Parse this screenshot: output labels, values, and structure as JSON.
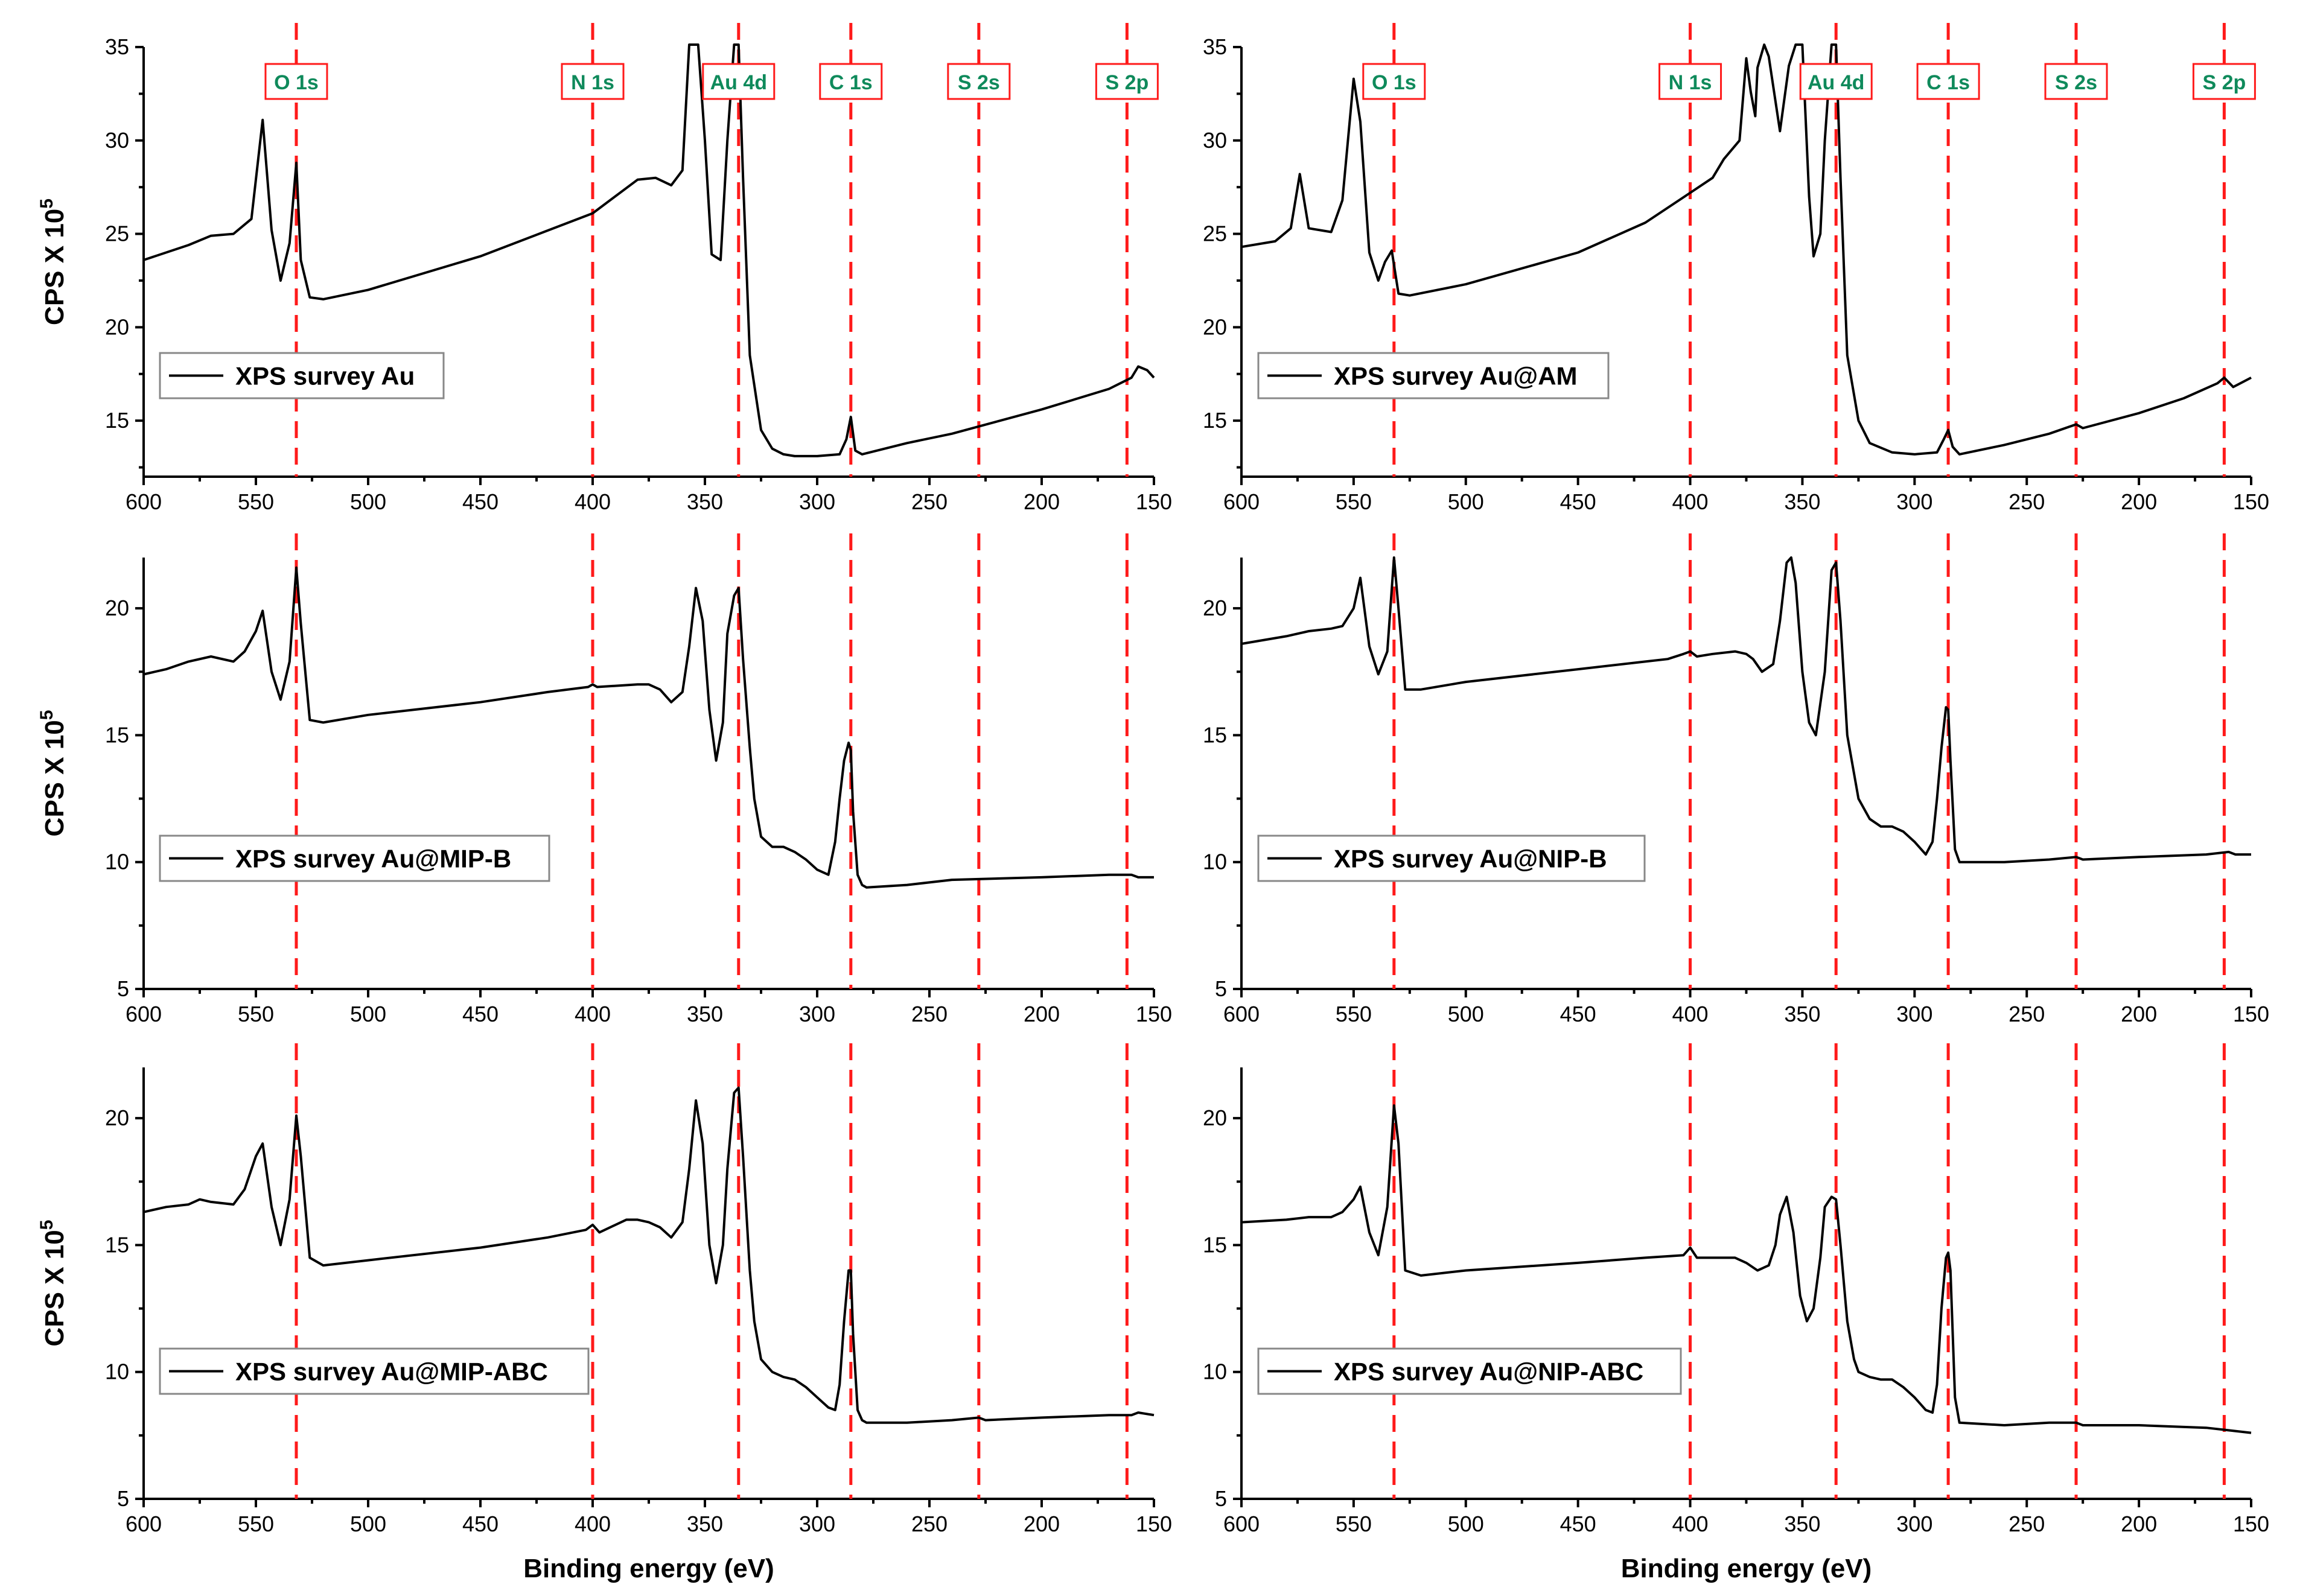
{
  "figure": {
    "x_title": "Binding energy (eV)",
    "y_title_base": "CPS X 10",
    "y_title_exp": "5"
  },
  "peak_refs": [
    {
      "label": "O 1s",
      "energy": 532
    },
    {
      "label": "N 1s",
      "energy": 400
    },
    {
      "label": "Au 4d",
      "energy": 335
    },
    {
      "label": "C 1s",
      "energy": 285
    },
    {
      "label": "S 2s",
      "energy": 228
    },
    {
      "label": "S 2p",
      "energy": 162
    }
  ],
  "chart_data": [
    {
      "type": "line",
      "name": "XPS survey Au",
      "legend": "XPS survey Au",
      "xlabel": "",
      "ylabel": "CPS X 10^5",
      "xlim": [
        600,
        150
      ],
      "ylim": [
        12,
        35
      ],
      "xticks": [
        600,
        550,
        500,
        450,
        400,
        350,
        300,
        250,
        200,
        150
      ],
      "yticks": [
        15,
        20,
        25,
        30,
        35
      ],
      "x": [
        600,
        580,
        570,
        560,
        552,
        547,
        543,
        539,
        535,
        532,
        530,
        526,
        520,
        500,
        450,
        400,
        380,
        372,
        365,
        360,
        357,
        353,
        350,
        347,
        343,
        340,
        337,
        335,
        333,
        330,
        325,
        320,
        315,
        310,
        300,
        290,
        287,
        285,
        283,
        280,
        260,
        240,
        200,
        170,
        160,
        157,
        153,
        150
      ],
      "y": [
        23.6,
        24.4,
        24.9,
        25.0,
        25.8,
        31.1,
        25.2,
        22.5,
        24.5,
        28.8,
        23.6,
        21.6,
        21.5,
        22.0,
        23.8,
        26.1,
        27.9,
        28.0,
        27.6,
        28.4,
        35.5,
        35.5,
        30.0,
        23.9,
        23.6,
        30.0,
        35.5,
        35.5,
        28.0,
        18.5,
        14.5,
        13.5,
        13.2,
        13.1,
        13.1,
        13.2,
        14.0,
        15.2,
        13.4,
        13.2,
        13.8,
        14.3,
        15.6,
        16.7,
        17.3,
        17.9,
        17.7,
        17.3
      ]
    },
    {
      "type": "line",
      "name": "XPS survey Au@AM",
      "legend": "XPS survey Au@AM",
      "xlabel": "",
      "ylabel": "",
      "xlim": [
        600,
        150
      ],
      "ylim": [
        12,
        35
      ],
      "xticks": [
        600,
        550,
        500,
        450,
        400,
        350,
        300,
        250,
        200,
        150
      ],
      "yticks": [
        15,
        20,
        25,
        30,
        35
      ],
      "x": [
        600,
        585,
        578,
        574,
        570,
        560,
        555,
        550,
        547,
        543,
        539,
        536,
        533,
        530,
        525,
        500,
        450,
        420,
        400,
        390,
        385,
        378,
        375,
        373,
        371,
        370,
        367,
        365,
        360,
        356,
        353,
        350,
        347,
        345,
        342,
        340,
        337,
        335,
        333,
        330,
        325,
        320,
        310,
        300,
        290,
        287,
        285,
        283,
        280,
        260,
        240,
        228,
        225,
        200,
        180,
        165,
        162,
        158,
        150
      ],
      "y": [
        24.3,
        24.6,
        25.3,
        28.2,
        25.3,
        25.1,
        26.8,
        33.3,
        31.0,
        24.0,
        22.5,
        23.5,
        24.1,
        21.8,
        21.7,
        22.3,
        24.0,
        25.6,
        27.2,
        28.0,
        29.0,
        30.0,
        34.4,
        32.6,
        31.3,
        33.9,
        35.5,
        34.5,
        30.5,
        34.0,
        35.5,
        35.5,
        27.0,
        23.8,
        25.0,
        30.0,
        35.5,
        35.5,
        28.0,
        18.5,
        15.0,
        13.8,
        13.3,
        13.2,
        13.3,
        14.0,
        14.5,
        13.6,
        13.2,
        13.7,
        14.3,
        14.8,
        14.6,
        15.4,
        16.2,
        17.0,
        17.3,
        16.8,
        17.3
      ]
    },
    {
      "type": "line",
      "name": "XPS survey Au@MIP-B",
      "legend": "XPS survey Au@MIP-B",
      "xlabel": "",
      "ylabel": "CPS X 10^5",
      "xlim": [
        600,
        150
      ],
      "ylim": [
        5,
        22
      ],
      "xticks": [
        600,
        550,
        500,
        450,
        400,
        350,
        300,
        250,
        200,
        150
      ],
      "yticks": [
        5,
        10,
        15,
        20
      ],
      "x": [
        600,
        590,
        580,
        570,
        560,
        555,
        550,
        547,
        543,
        539,
        535,
        532,
        530,
        526,
        520,
        500,
        450,
        420,
        402,
        400,
        398,
        380,
        375,
        370,
        365,
        360,
        357,
        354,
        351,
        348,
        345,
        342,
        340,
        337,
        335,
        333,
        330,
        328,
        325,
        320,
        315,
        310,
        305,
        300,
        295,
        292,
        290,
        288,
        286,
        285,
        284,
        282,
        280,
        278,
        260,
        240,
        200,
        170,
        160,
        157,
        150
      ],
      "y": [
        17.4,
        17.6,
        17.9,
        18.1,
        17.9,
        18.3,
        19.1,
        19.9,
        17.5,
        16.4,
        17.9,
        21.6,
        19.4,
        15.6,
        15.5,
        15.8,
        16.3,
        16.7,
        16.9,
        17.0,
        16.9,
        17.0,
        17.0,
        16.8,
        16.3,
        16.7,
        18.5,
        20.8,
        19.5,
        16.0,
        14.0,
        15.5,
        19.0,
        20.5,
        20.8,
        18.0,
        14.5,
        12.5,
        11.0,
        10.6,
        10.6,
        10.4,
        10.1,
        9.7,
        9.5,
        10.8,
        12.5,
        14.0,
        14.7,
        14.4,
        12.0,
        9.5,
        9.1,
        9.0,
        9.1,
        9.3,
        9.4,
        9.5,
        9.5,
        9.4,
        9.4
      ]
    },
    {
      "type": "line",
      "name": "XPS survey Au@NIP-B",
      "legend": "XPS survey Au@NIP-B",
      "xlabel": "",
      "ylabel": "",
      "xlim": [
        600,
        150
      ],
      "ylim": [
        5,
        22
      ],
      "xticks": [
        600,
        550,
        500,
        450,
        400,
        350,
        300,
        250,
        200,
        150
      ],
      "yticks": [
        5,
        10,
        15,
        20
      ],
      "x": [
        600,
        580,
        570,
        560,
        555,
        550,
        547,
        543,
        539,
        535,
        532,
        530,
        527,
        520,
        500,
        450,
        420,
        410,
        403,
        400,
        397,
        390,
        380,
        375,
        372,
        368,
        363,
        360,
        357,
        355,
        353,
        350,
        347,
        344,
        340,
        337,
        335,
        333,
        330,
        325,
        320,
        315,
        310,
        305,
        300,
        295,
        292,
        290,
        288,
        286,
        285,
        284,
        282,
        280,
        260,
        240,
        228,
        225,
        200,
        170,
        160,
        157,
        150
      ],
      "y": [
        18.6,
        18.9,
        19.1,
        19.2,
        19.3,
        20.0,
        21.2,
        18.5,
        17.4,
        18.3,
        22.0,
        20.0,
        16.8,
        16.8,
        17.1,
        17.6,
        17.9,
        18.0,
        18.2,
        18.3,
        18.1,
        18.2,
        18.3,
        18.2,
        18.0,
        17.5,
        17.8,
        19.5,
        21.8,
        22.0,
        21.0,
        17.5,
        15.5,
        15.0,
        17.5,
        21.5,
        21.8,
        19.5,
        15.0,
        12.5,
        11.7,
        11.4,
        11.4,
        11.2,
        10.8,
        10.3,
        10.8,
        12.5,
        14.5,
        16.1,
        16.0,
        14.0,
        10.5,
        10.0,
        10.0,
        10.1,
        10.2,
        10.1,
        10.2,
        10.3,
        10.4,
        10.3,
        10.3
      ]
    },
    {
      "type": "line",
      "name": "XPS survey Au@MIP-ABC",
      "legend": "XPS survey Au@MIP-ABC",
      "xlabel": "Binding energy (eV)",
      "ylabel": "CPS X 10^5",
      "xlim": [
        600,
        150
      ],
      "ylim": [
        5,
        22
      ],
      "xticks": [
        600,
        550,
        500,
        450,
        400,
        350,
        300,
        250,
        200,
        150
      ],
      "yticks": [
        5,
        10,
        15,
        20
      ],
      "x": [
        600,
        590,
        580,
        575,
        570,
        560,
        555,
        550,
        547,
        543,
        539,
        535,
        532,
        530,
        526,
        520,
        500,
        450,
        420,
        403,
        400,
        397,
        385,
        380,
        375,
        370,
        365,
        360,
        357,
        354,
        351,
        348,
        345,
        342,
        340,
        337,
        335,
        333,
        330,
        328,
        325,
        320,
        315,
        310,
        305,
        300,
        295,
        292,
        290,
        288,
        286,
        285,
        284,
        282,
        280,
        278,
        260,
        240,
        228,
        225,
        200,
        170,
        160,
        157,
        150
      ],
      "y": [
        16.3,
        16.5,
        16.6,
        16.8,
        16.7,
        16.6,
        17.2,
        18.5,
        19.0,
        16.5,
        15.0,
        16.8,
        20.1,
        18.5,
        14.5,
        14.2,
        14.4,
        14.9,
        15.3,
        15.6,
        15.8,
        15.5,
        16.0,
        16.0,
        15.9,
        15.7,
        15.3,
        15.9,
        18.0,
        20.7,
        19.0,
        15.0,
        13.5,
        15.0,
        18.0,
        21.0,
        21.2,
        18.5,
        14.0,
        12.0,
        10.5,
        10.0,
        9.8,
        9.7,
        9.4,
        9.0,
        8.6,
        8.5,
        9.5,
        12.0,
        14.0,
        14.0,
        11.5,
        8.5,
        8.1,
        8.0,
        8.0,
        8.1,
        8.2,
        8.1,
        8.2,
        8.3,
        8.3,
        8.4,
        8.3
      ]
    },
    {
      "type": "line",
      "name": "XPS survey Au@NIP-ABC",
      "legend": "XPS survey Au@NIP-ABC",
      "xlabel": "Binding energy (eV)",
      "ylabel": "",
      "xlim": [
        600,
        150
      ],
      "ylim": [
        5,
        22
      ],
      "xticks": [
        600,
        550,
        500,
        450,
        400,
        350,
        300,
        250,
        200,
        150
      ],
      "yticks": [
        5,
        10,
        15,
        20
      ],
      "x": [
        600,
        580,
        570,
        560,
        555,
        550,
        547,
        543,
        539,
        535,
        532,
        530,
        527,
        520,
        500,
        450,
        420,
        403,
        400,
        397,
        380,
        375,
        370,
        365,
        362,
        360,
        357,
        354,
        351,
        348,
        345,
        342,
        340,
        337,
        335,
        333,
        330,
        327,
        325,
        320,
        315,
        310,
        305,
        300,
        295,
        292,
        290,
        288,
        286,
        285,
        284,
        282,
        280,
        260,
        240,
        228,
        225,
        200,
        170,
        160,
        150
      ],
      "y": [
        15.9,
        16.0,
        16.1,
        16.1,
        16.3,
        16.8,
        17.3,
        15.5,
        14.6,
        16.5,
        20.5,
        19.0,
        14.0,
        13.8,
        14.0,
        14.3,
        14.5,
        14.6,
        14.9,
        14.5,
        14.5,
        14.3,
        14.0,
        14.2,
        15.0,
        16.2,
        16.9,
        15.5,
        13.0,
        12.0,
        12.5,
        14.5,
        16.5,
        16.9,
        16.8,
        15.0,
        12.0,
        10.5,
        10.0,
        9.8,
        9.7,
        9.7,
        9.4,
        9.0,
        8.5,
        8.4,
        9.5,
        12.5,
        14.5,
        14.7,
        14.0,
        9.0,
        8.0,
        7.9,
        8.0,
        8.0,
        7.9,
        7.9,
        7.8,
        7.7,
        7.6
      ]
    }
  ]
}
